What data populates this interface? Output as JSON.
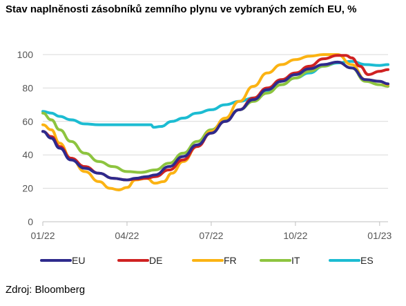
{
  "title": "Stav naplněnosti zásobníků zemního plynu ve vybraných zemích EU, %",
  "source": "Zdroj: Bloomberg",
  "colors": {
    "EU": "#2e2a8c",
    "DE": "#cf2222",
    "FR": "#fbb313",
    "IT": "#8dc43f",
    "ES": "#1cbcd2",
    "grid": "#d9d9d9",
    "axis": "#bfbfbf"
  },
  "chart_data": {
    "type": "line",
    "title": "Stav naplněnosti zásobníků zemního plynu ve vybraných zemích EU, %",
    "xlabel": "",
    "ylabel": "",
    "x_ticks": [
      "01/22",
      "04/22",
      "07/22",
      "10/22",
      "01/23"
    ],
    "xlim": [
      0,
      12.3
    ],
    "ylim": [
      0,
      100
    ],
    "y_ticks": [
      0,
      20,
      40,
      60,
      80,
      100
    ],
    "grid": "horizontal",
    "legend": "bottom",
    "series": [
      {
        "name": "EU",
        "x": [
          0,
          0.3,
          0.6,
          1,
          1.5,
          2,
          2.5,
          3,
          3.3,
          3.7,
          4,
          4.5,
          5,
          5.5,
          6,
          6.5,
          7,
          7.5,
          8,
          8.5,
          9,
          9.5,
          10,
          10.5,
          11,
          11.5,
          12,
          12.3
        ],
        "y": [
          54,
          50,
          44,
          37,
          32,
          29,
          26,
          25,
          26,
          27,
          28,
          33,
          39,
          46,
          53,
          60,
          67,
          73,
          79,
          84,
          88,
          91.5,
          94,
          95.5,
          92,
          85,
          84,
          82.5
        ]
      },
      {
        "name": "DE",
        "x": [
          0,
          0.3,
          0.6,
          1,
          1.5,
          2,
          2.5,
          3,
          3.3,
          3.7,
          4,
          4.5,
          5,
          5.5,
          6,
          6.5,
          7,
          7.5,
          8,
          8.5,
          9,
          9.5,
          10,
          10.5,
          10.8,
          11,
          11.3,
          11.6,
          12,
          12.3
        ],
        "y": [
          54,
          51,
          45,
          38,
          33,
          29,
          26,
          25,
          25.5,
          26,
          27,
          31,
          37,
          45,
          53,
          60,
          67,
          74,
          80,
          85,
          89,
          93,
          97.5,
          99.5,
          99.5,
          98,
          93,
          88,
          90,
          91
        ]
      },
      {
        "name": "FR",
        "x": [
          0,
          0.3,
          0.6,
          1,
          1.5,
          2,
          2.4,
          2.7,
          3,
          3.3,
          3.7,
          4,
          4.3,
          4.6,
          5,
          5.5,
          6,
          6.5,
          7,
          7.5,
          8,
          8.5,
          9,
          9.5,
          10,
          10.5,
          11,
          11.5,
          12,
          12.3
        ],
        "y": [
          58,
          55,
          47,
          38,
          30,
          24,
          20,
          19,
          20.5,
          25,
          26,
          23,
          24,
          29,
          36,
          45,
          54,
          62,
          72,
          81,
          89,
          94,
          97,
          99,
          100,
          100,
          94,
          85,
          84,
          82
        ]
      },
      {
        "name": "IT",
        "x": [
          0,
          0.3,
          0.6,
          1,
          1.5,
          2,
          2.5,
          3,
          3.5,
          4,
          4.5,
          5,
          5.5,
          6,
          6.5,
          7,
          7.5,
          8,
          8.5,
          9,
          9.5,
          10,
          10.5,
          11,
          11.5,
          12,
          12.3
        ],
        "y": [
          65,
          61,
          55,
          48,
          41,
          36,
          33,
          30,
          29.5,
          31,
          35,
          41,
          48,
          55,
          61,
          67,
          72,
          77,
          82,
          86,
          90,
          93,
          95.5,
          92,
          84,
          82,
          81
        ]
      },
      {
        "name": "ES",
        "x": [
          0,
          0.3,
          0.6,
          1,
          1.5,
          2,
          2.5,
          3,
          3.5,
          3.85,
          3.95,
          4.2,
          4.6,
          5,
          5.5,
          6,
          6.5,
          7,
          7.5,
          8,
          8.5,
          9,
          9.5,
          10,
          10.5,
          11,
          11.5,
          12,
          12.3
        ],
        "y": [
          66,
          65,
          63,
          61,
          58.5,
          58,
          58,
          58,
          58,
          58,
          56.5,
          57,
          60,
          62,
          65,
          67,
          70,
          72,
          74,
          78,
          82,
          86,
          89,
          93,
          95,
          96,
          94,
          93.5,
          94
        ]
      }
    ]
  }
}
